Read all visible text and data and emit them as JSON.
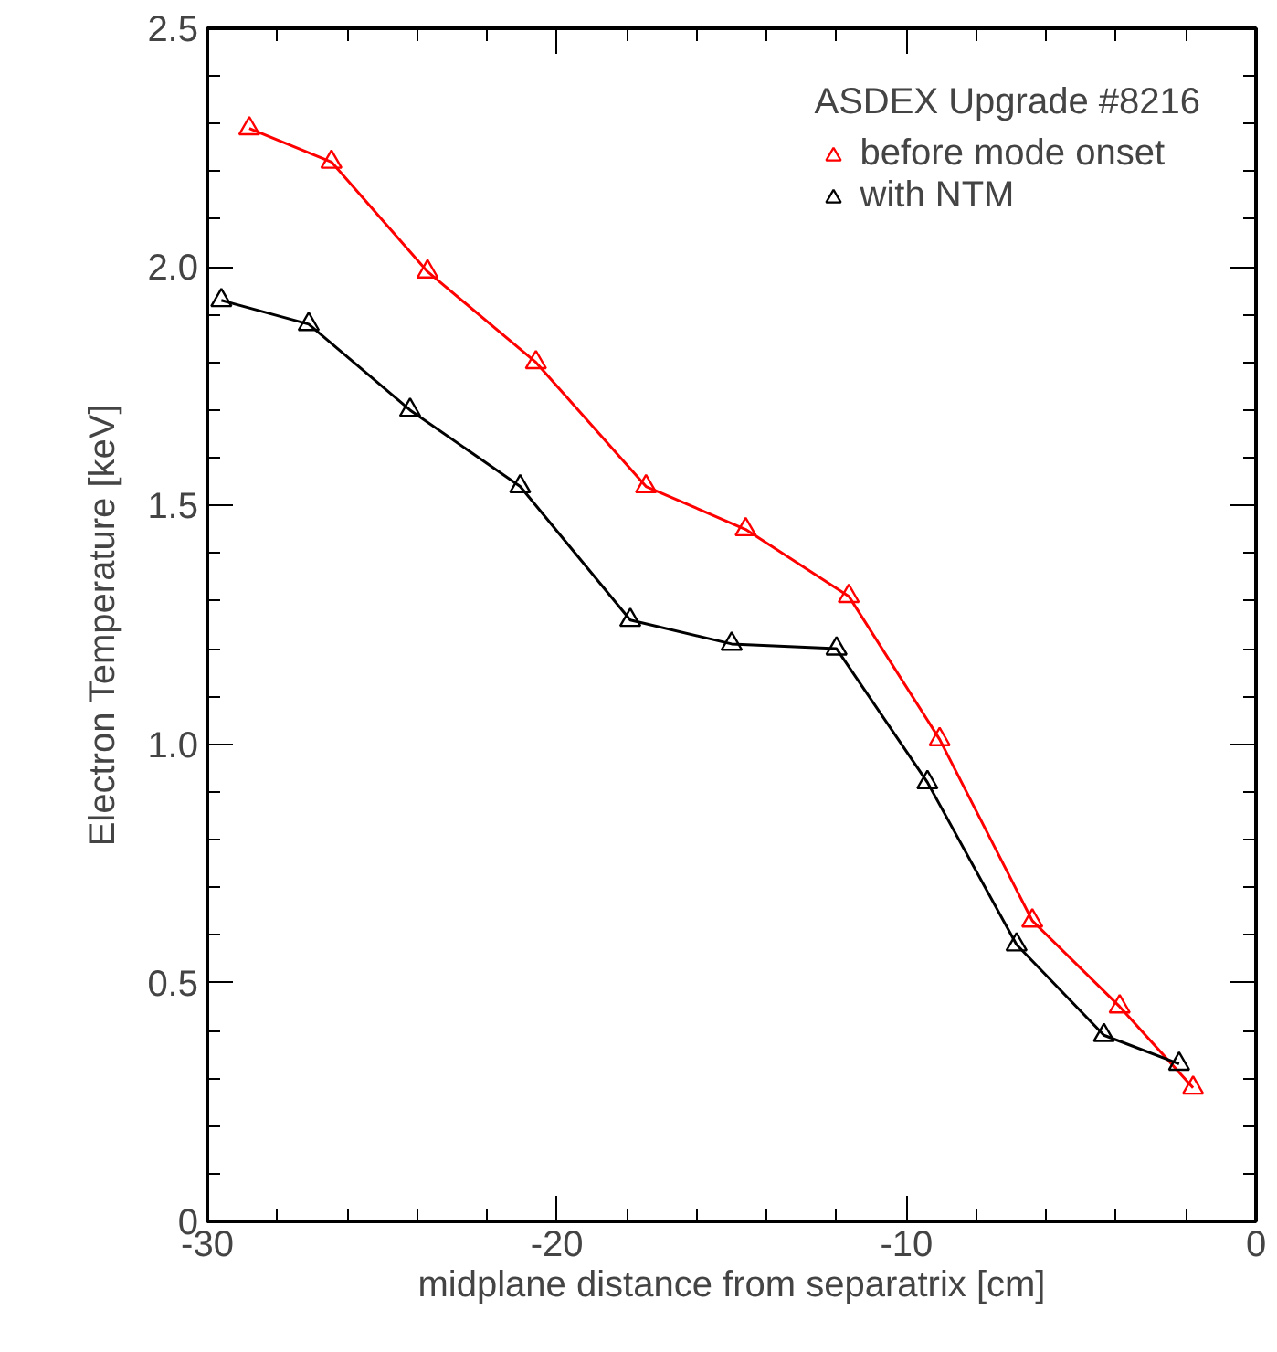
{
  "chart_data": {
    "type": "line",
    "xlabel": "midplane distance from separatrix [cm]",
    "ylabel": "Electron Temperature [keV]",
    "legend_title": "ASDEX Upgrade #8216",
    "legend": "top right",
    "grid": false,
    "marker": "triangle",
    "line_style": "solid",
    "xlim": [
      -30,
      0
    ],
    "xticks": [
      -30,
      -20,
      -10,
      0
    ],
    "ylim": [
      0,
      2.5
    ],
    "yticks": [
      0,
      0.5,
      {
        "value": 1,
        "label": "1.0"
      },
      1.5,
      {
        "value": 2,
        "label": "2.0"
      },
      2.5
    ],
    "series": [
      {
        "name": "before mode onset",
        "color": "#ff0000",
        "x": [
          -28.8,
          -26.45,
          -23.7,
          -20.6,
          -17.45,
          -14.6,
          -11.65,
          -9.05,
          -6.4,
          -3.9,
          -1.8
        ],
        "values": [
          2.29,
          2.22,
          1.99,
          1.8,
          1.54,
          1.45,
          1.31,
          1.01,
          0.63,
          0.45,
          0.28
        ]
      },
      {
        "name": "with NTM",
        "color": "#000000",
        "x": [
          -29.6,
          -27.1,
          -24.2,
          -21.05,
          -17.9,
          -15.0,
          -12.0,
          -9.4,
          -6.85,
          -4.35,
          -2.2
        ],
        "values": [
          1.93,
          1.88,
          1.7,
          1.54,
          1.26,
          1.21,
          1.2,
          0.92,
          0.58,
          0.39,
          0.33
        ]
      }
    ]
  }
}
